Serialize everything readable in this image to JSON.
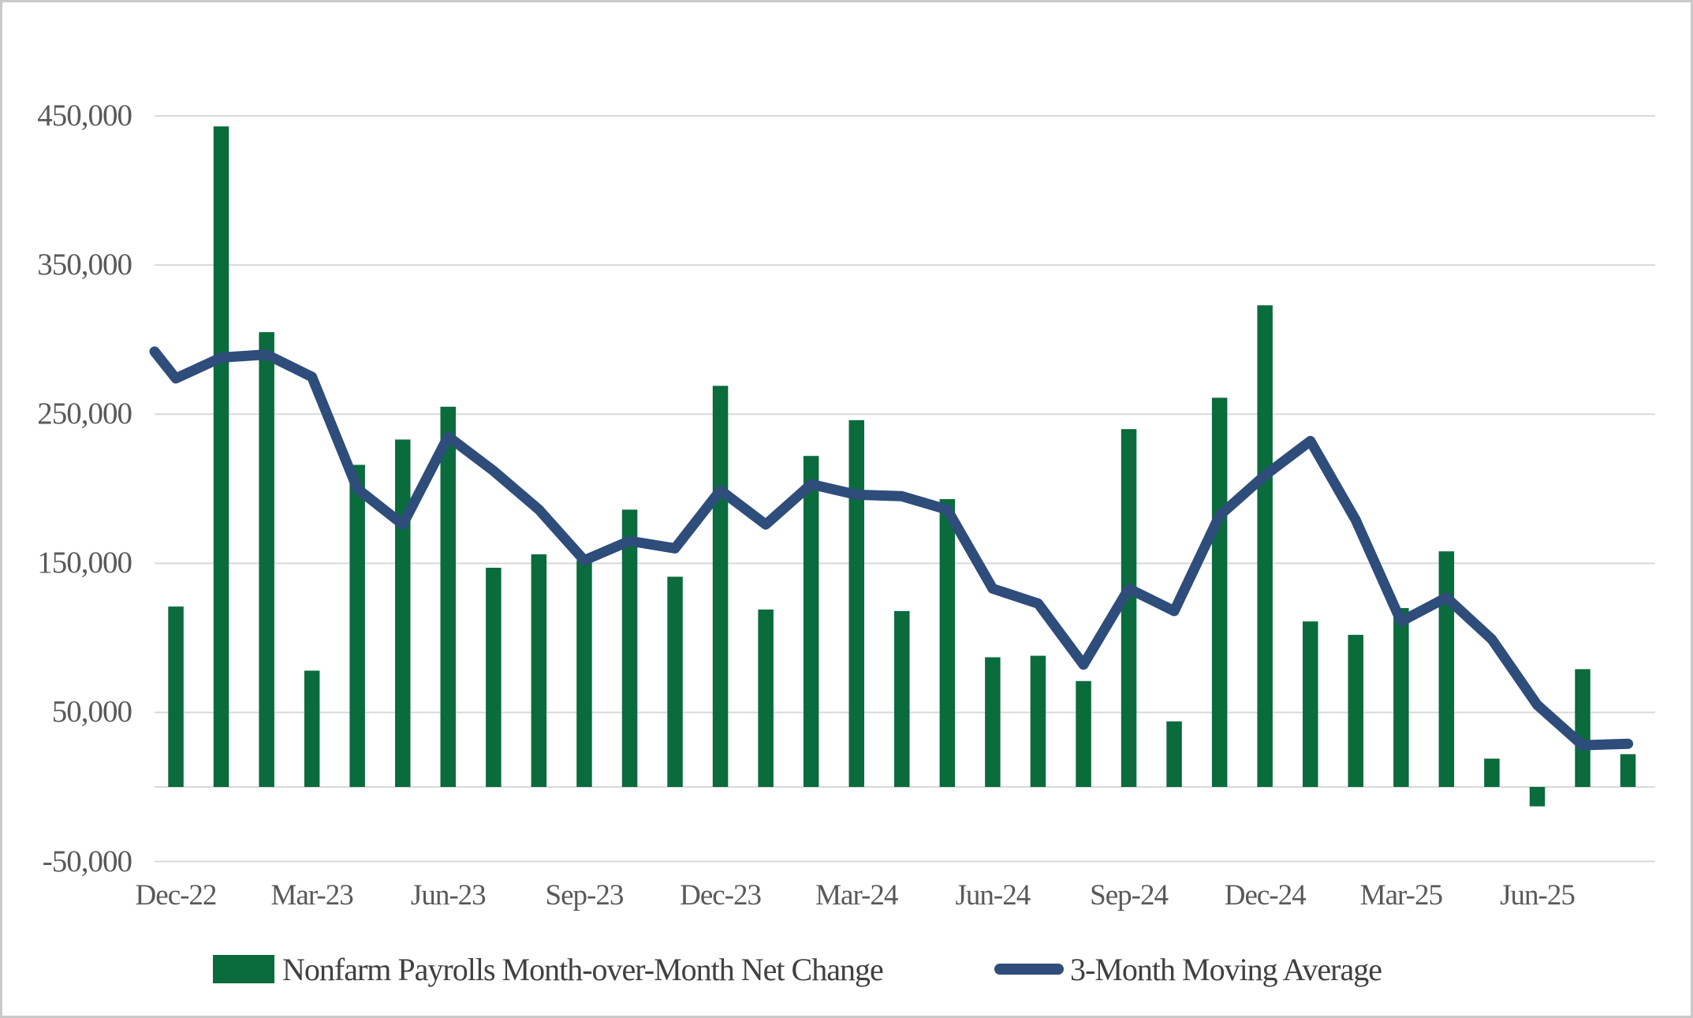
{
  "chart_data": {
    "type": "bar",
    "overlay": "line",
    "title": "",
    "categories": [
      "Dec-22",
      "Jan-23",
      "Feb-23",
      "Mar-23",
      "Apr-23",
      "May-23",
      "Jun-23",
      "Jul-23",
      "Aug-23",
      "Sep-23",
      "Oct-23",
      "Nov-23",
      "Dec-23",
      "Jan-24",
      "Feb-24",
      "Mar-24",
      "Apr-24",
      "May-24",
      "Jun-24",
      "Jul-24",
      "Aug-24",
      "Sep-24",
      "Oct-24",
      "Nov-24",
      "Dec-24",
      "Jan-25",
      "Feb-25",
      "Mar-25",
      "Apr-25",
      "May-25",
      "Jun-25",
      "Jul-25",
      "Aug-25"
    ],
    "series": [
      {
        "name": "Nonfarm Payrolls Month-over-Month Net Change",
        "type": "bar",
        "color": "#0A6B3C",
        "values": [
          121000,
          443000,
          305000,
          78000,
          216000,
          233000,
          255000,
          147000,
          156000,
          152000,
          186000,
          141000,
          269000,
          119000,
          222000,
          246000,
          118000,
          193000,
          87000,
          88000,
          71000,
          240000,
          44000,
          261000,
          323000,
          111000,
          102000,
          120000,
          158000,
          19000,
          -13000,
          79000,
          22000
        ]
      },
      {
        "name": "3-Month Moving Average",
        "type": "line",
        "color": "#2E4D7B",
        "values": [
          274000,
          288000,
          290000,
          275000,
          200000,
          176000,
          235000,
          212000,
          186000,
          152000,
          165000,
          160000,
          199000,
          176000,
          203000,
          196000,
          195000,
          186000,
          133000,
          123000,
          82000,
          133000,
          118000,
          182000,
          209000,
          232000,
          179000,
          111000,
          127000,
          99000,
          55000,
          28000,
          29000
        ],
        "left_edge_entry_value": 292000
      }
    ],
    "x_axis": {
      "tick_interval": 3,
      "tick_labels": [
        "Dec-22",
        "Mar-23",
        "Jun-23",
        "Sep-23",
        "Dec-23",
        "Mar-24",
        "Jun-24",
        "Sep-24",
        "Dec-24",
        "Mar-25",
        "Jun-25"
      ]
    },
    "y_axis": {
      "min": -50000,
      "max": 450000,
      "tick_step": 100000,
      "ticks": [
        {
          "value": 450000,
          "label": "450,000"
        },
        {
          "value": 350000,
          "label": "350,000"
        },
        {
          "value": 250000,
          "label": "250,000"
        },
        {
          "value": 150000,
          "label": "150,000"
        },
        {
          "value": 50000,
          "label": "50,000"
        },
        {
          "value": -50000,
          "label": "-50,000"
        }
      ]
    },
    "grid": true,
    "legend_position": "bottom",
    "colors": {
      "bar": "#0A6B3C",
      "line": "#2E4D7B",
      "gridline": "#D9D9D9",
      "axis_text": "#595959",
      "border": "#C9C9C9",
      "background": "#FFFFFF"
    }
  }
}
